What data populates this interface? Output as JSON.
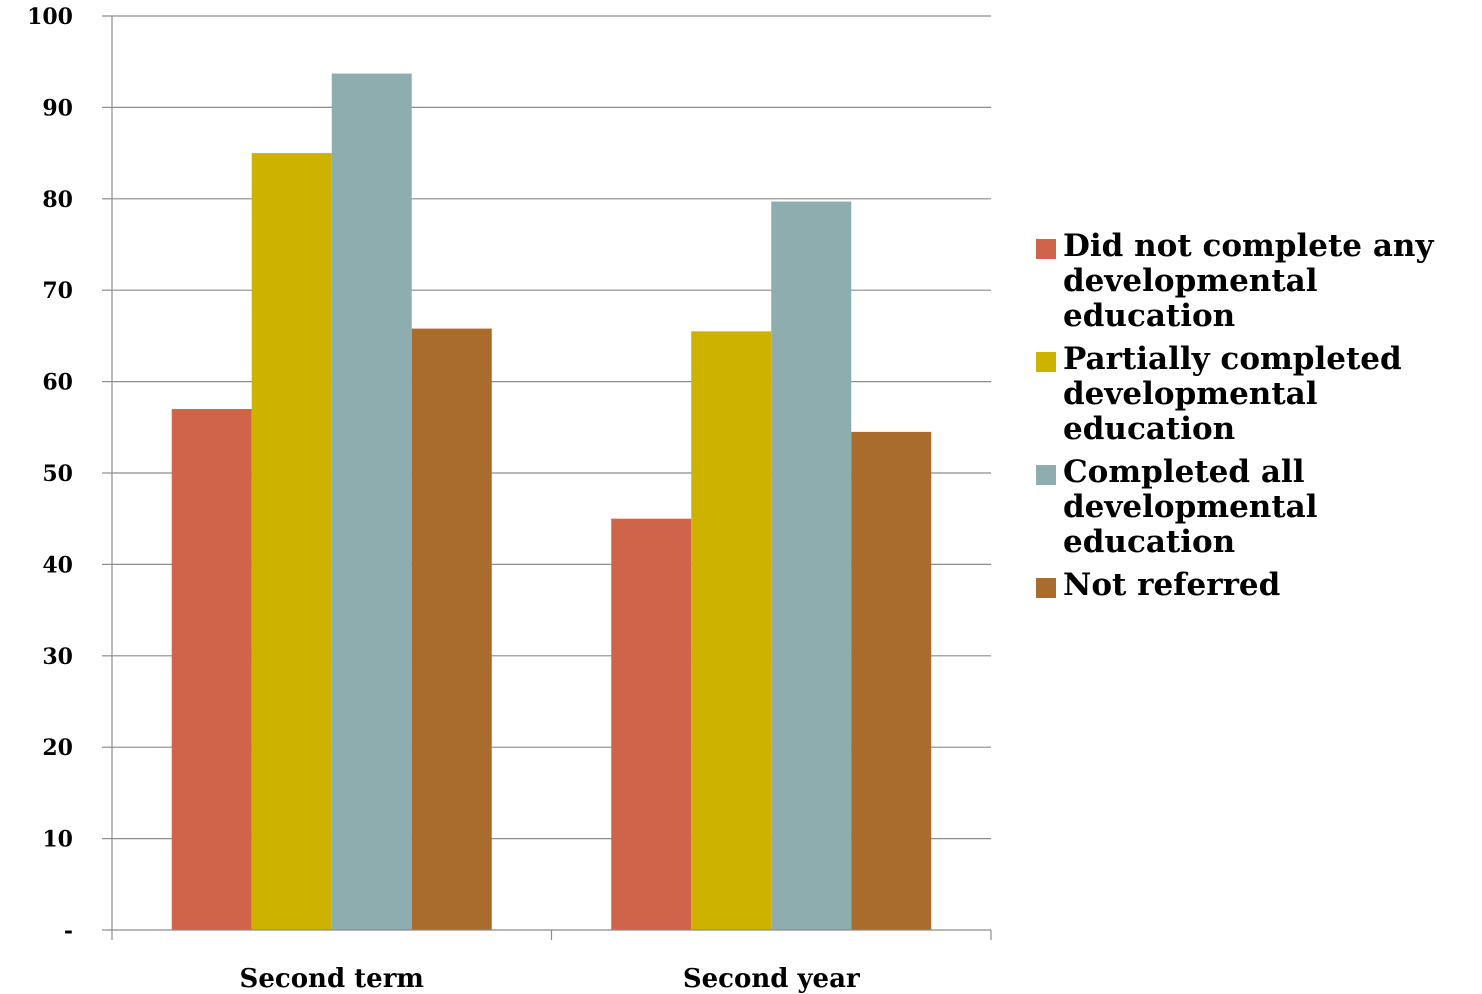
{
  "chart_data": {
    "type": "bar",
    "categories": [
      "Second term",
      "Second year"
    ],
    "series": [
      {
        "name": "Did not complete any developmental education",
        "values": [
          57,
          45
        ],
        "color": "#D0644B"
      },
      {
        "name": "Partially completed developmental education",
        "values": [
          85,
          65.5
        ],
        "color": "#CDB200"
      },
      {
        "name": "Completed all developmental education",
        "values": [
          93.7,
          79.7
        ],
        "color": "#8EADAE"
      },
      {
        "name": "Not referred",
        "values": [
          65.8,
          54.5
        ],
        "color": "#A96C2C"
      }
    ],
    "ylim": [
      0,
      100
    ],
    "yticks": [
      0,
      10,
      20,
      30,
      40,
      50,
      60,
      70,
      80,
      90,
      100
    ],
    "ytick_labels": [
      "-",
      "10",
      "20",
      "30",
      "40",
      "50",
      "60",
      "70",
      "80",
      "90",
      "100"
    ],
    "grid": true,
    "legend_position": "right",
    "title": "",
    "xlabel": "",
    "ylabel": ""
  }
}
